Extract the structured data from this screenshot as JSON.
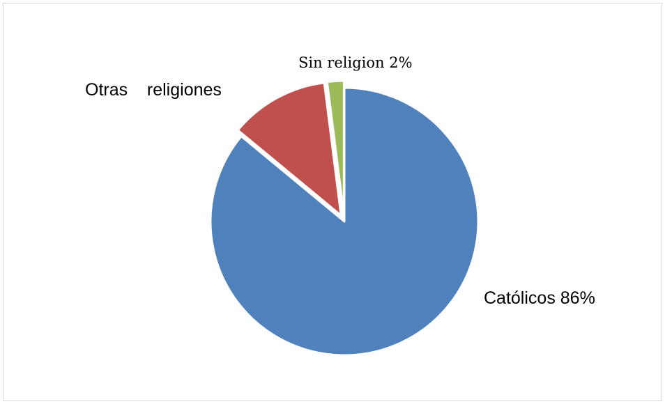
{
  "chart_data": {
    "type": "pie",
    "title": "",
    "slices": [
      {
        "label": "Católicos 86%",
        "value": 86,
        "color": "#4F81BD"
      },
      {
        "label": "Otras    religiones",
        "value": 12,
        "color": "#C0504D"
      },
      {
        "label": "Sin religion 2%",
        "value": 2,
        "color": "#9BBB59"
      }
    ],
    "start_angle_deg": 0,
    "direction": "clockwise",
    "exploded": true,
    "legend": "none"
  }
}
